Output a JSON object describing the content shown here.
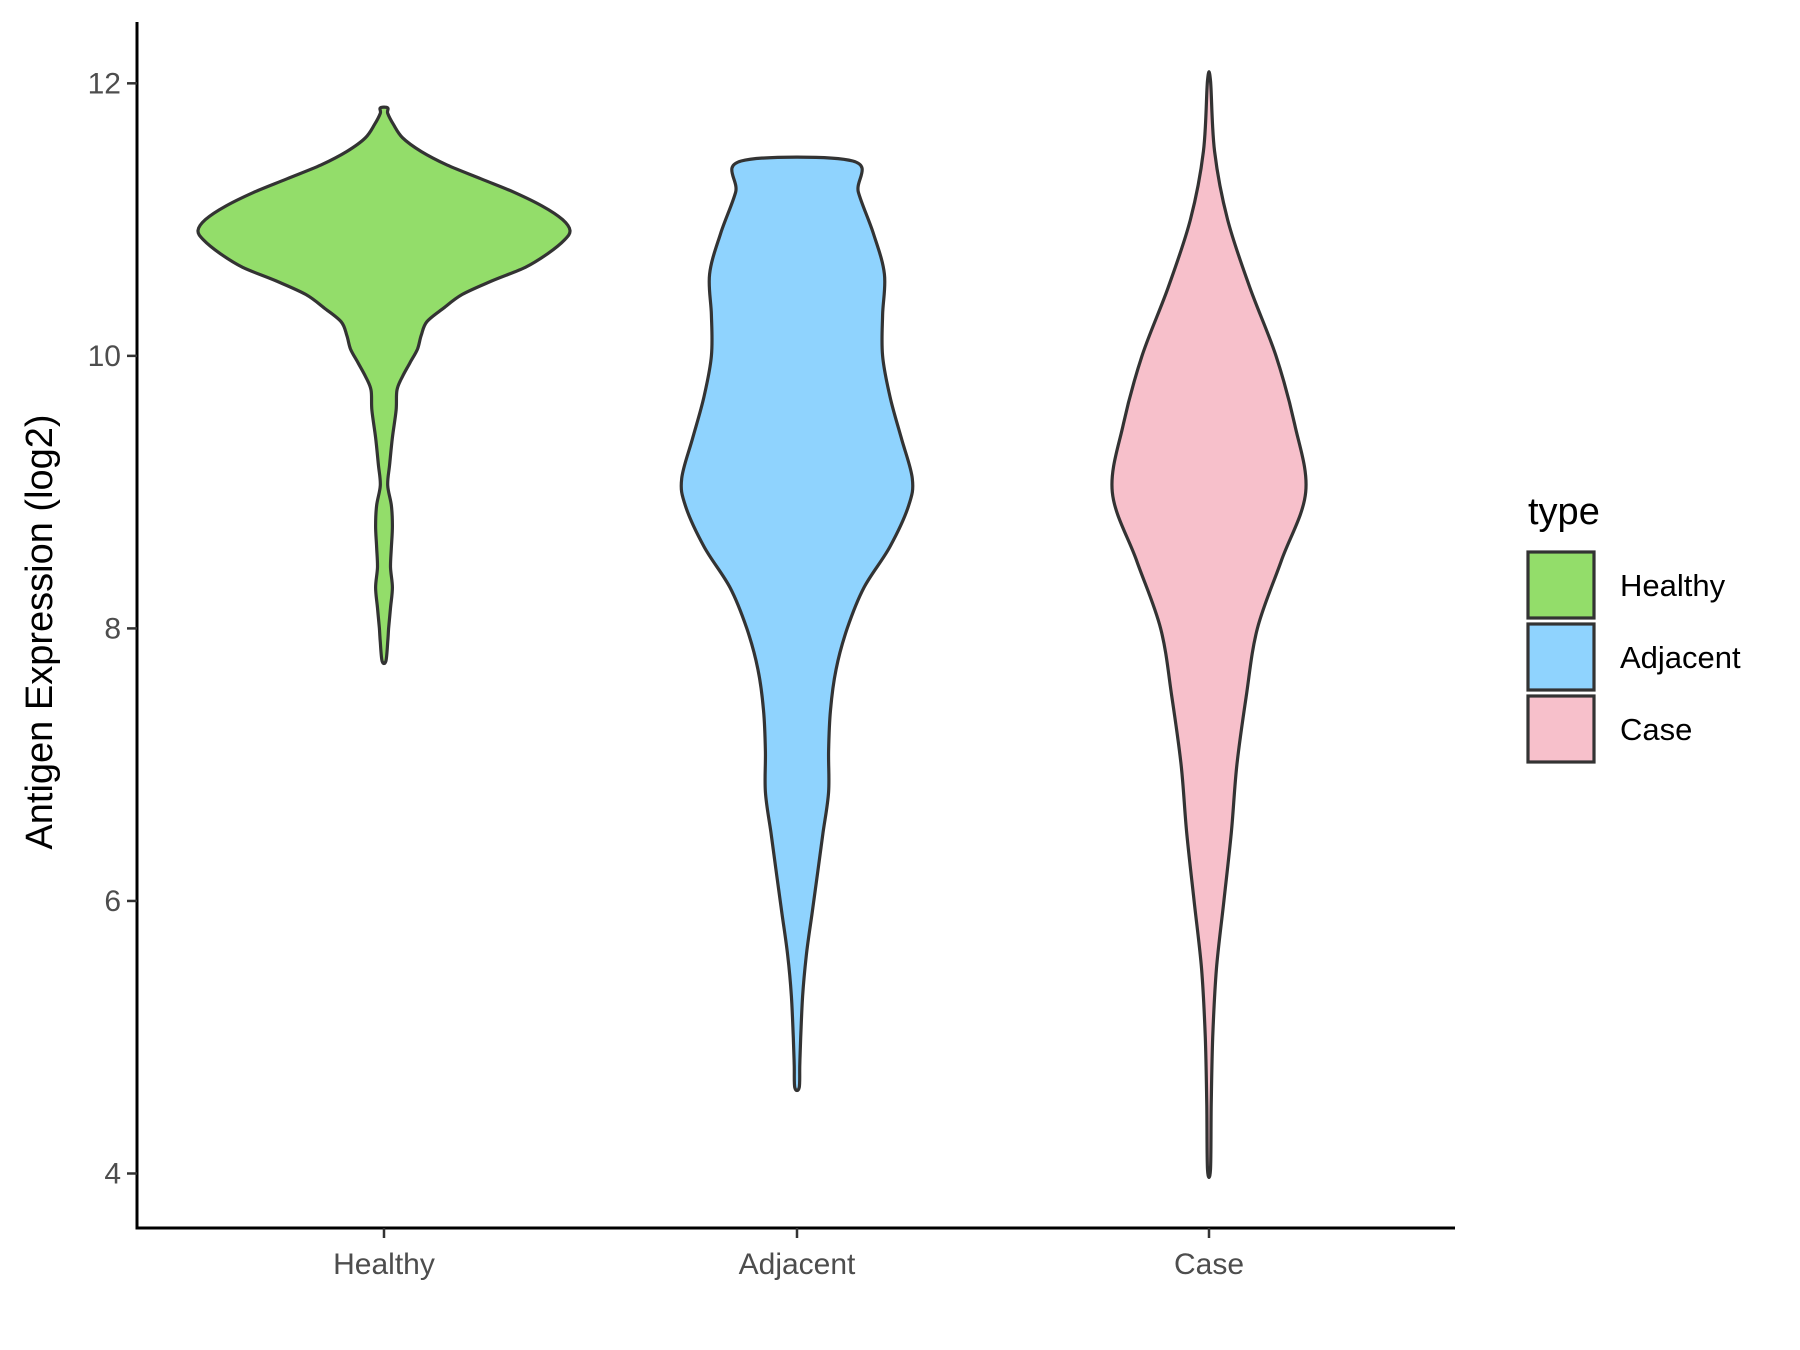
{
  "chart_data": {
    "type": "violin",
    "xlabel": "",
    "ylabel": "Antigen Expression (log2)",
    "ylim": [
      3.6,
      12.45
    ],
    "yticks": [
      4,
      6,
      8,
      10,
      12
    ],
    "grid": false,
    "legend": {
      "title": "type",
      "position": "right"
    },
    "categories": [
      "Healthy",
      "Adjacent",
      "Case"
    ],
    "series": [
      {
        "name": "Healthy",
        "color": "#93dd6a",
        "min": 7.76,
        "max": 11.82,
        "density": [
          [
            7.76,
            0.01
          ],
          [
            7.9,
            0.02
          ],
          [
            8.0,
            0.025
          ],
          [
            8.15,
            0.035
          ],
          [
            8.3,
            0.045
          ],
          [
            8.45,
            0.035
          ],
          [
            8.6,
            0.04
          ],
          [
            8.75,
            0.045
          ],
          [
            8.9,
            0.04
          ],
          [
            9.05,
            0.02
          ],
          [
            9.2,
            0.03
          ],
          [
            9.4,
            0.045
          ],
          [
            9.6,
            0.065
          ],
          [
            9.75,
            0.07
          ],
          [
            9.85,
            0.1
          ],
          [
            9.95,
            0.14
          ],
          [
            10.05,
            0.18
          ],
          [
            10.15,
            0.2
          ],
          [
            10.25,
            0.23
          ],
          [
            10.35,
            0.32
          ],
          [
            10.45,
            0.42
          ],
          [
            10.55,
            0.58
          ],
          [
            10.65,
            0.76
          ],
          [
            10.75,
            0.88
          ],
          [
            10.85,
            0.97
          ],
          [
            10.92,
            1.0
          ],
          [
            11.0,
            0.96
          ],
          [
            11.1,
            0.85
          ],
          [
            11.2,
            0.7
          ],
          [
            11.3,
            0.52
          ],
          [
            11.4,
            0.34
          ],
          [
            11.5,
            0.2
          ],
          [
            11.6,
            0.1
          ],
          [
            11.7,
            0.05
          ],
          [
            11.78,
            0.02
          ],
          [
            11.82,
            0.02
          ]
        ]
      },
      {
        "name": "Adjacent",
        "color": "#8fd3fe",
        "min": 4.63,
        "max": 11.43,
        "density": [
          [
            4.63,
            0.012
          ],
          [
            4.8,
            0.015
          ],
          [
            5.0,
            0.02
          ],
          [
            5.3,
            0.03
          ],
          [
            5.6,
            0.05
          ],
          [
            5.9,
            0.08
          ],
          [
            6.2,
            0.11
          ],
          [
            6.5,
            0.14
          ],
          [
            6.8,
            0.17
          ],
          [
            7.1,
            0.17
          ],
          [
            7.4,
            0.18
          ],
          [
            7.7,
            0.21
          ],
          [
            8.0,
            0.27
          ],
          [
            8.3,
            0.36
          ],
          [
            8.6,
            0.5
          ],
          [
            8.9,
            0.6
          ],
          [
            9.1,
            0.62
          ],
          [
            9.4,
            0.56
          ],
          [
            9.7,
            0.5
          ],
          [
            10.0,
            0.46
          ],
          [
            10.3,
            0.46
          ],
          [
            10.6,
            0.47
          ],
          [
            10.9,
            0.41
          ],
          [
            11.2,
            0.33
          ],
          [
            11.43,
            0.3
          ]
        ]
      },
      {
        "name": "Case",
        "color": "#f7c0cb",
        "min": 4.03,
        "max": 12.02,
        "density": [
          [
            4.03,
            0.008
          ],
          [
            4.5,
            0.012
          ],
          [
            5.0,
            0.02
          ],
          [
            5.5,
            0.04
          ],
          [
            6.0,
            0.08
          ],
          [
            6.5,
            0.12
          ],
          [
            7.0,
            0.15
          ],
          [
            7.5,
            0.2
          ],
          [
            8.0,
            0.26
          ],
          [
            8.5,
            0.39
          ],
          [
            9.0,
            0.52
          ],
          [
            9.5,
            0.46
          ],
          [
            10.0,
            0.36
          ],
          [
            10.5,
            0.22
          ],
          [
            11.0,
            0.1
          ],
          [
            11.5,
            0.03
          ],
          [
            12.02,
            0.008
          ]
        ]
      }
    ]
  }
}
